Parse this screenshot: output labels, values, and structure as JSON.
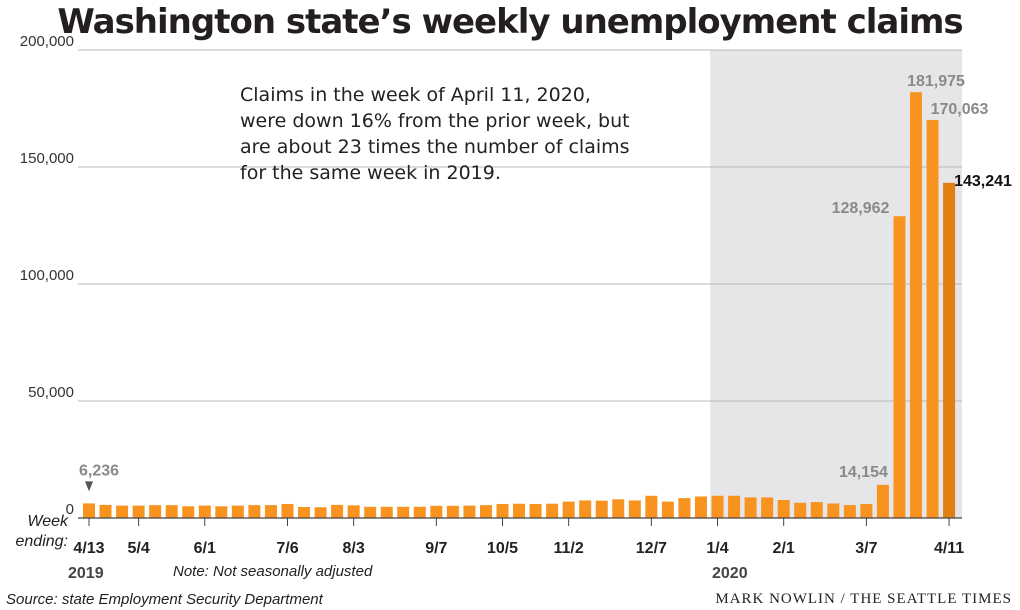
{
  "title": "Washington state’s weekly unemployment claims",
  "note": "Claims in the week of April 11, 2020, were down 16% from the prior week, but are about 23 times the number of claims for the same week in 2019.",
  "week_label": "Week ending:",
  "year_2019": "2019",
  "year_2020": "2020",
  "adjustment_note": "Note: Not seasonally adjusted",
  "source": "Source: state Employment Security Department",
  "credit": "MARK NOWLIN / THE SEATTLE TIMES",
  "colors": {
    "bar": "#f7931e",
    "bar_emphasis": "#e07f14",
    "shade_2020": "#e6e6e8",
    "grid": "#b8b8b8"
  },
  "chart_data": {
    "type": "bar",
    "title": "Washington state’s weekly unemployment claims",
    "ylim": [
      0,
      200000
    ],
    "yticks": [
      0,
      50000,
      100000,
      150000,
      200000
    ],
    "ytick_labels": [
      "0",
      "50,000",
      "100,000",
      "150,000",
      "200,000"
    ],
    "grid": true,
    "x_tick_labels": [
      {
        "index": 0,
        "label": "4/13"
      },
      {
        "index": 3,
        "label": "5/4"
      },
      {
        "index": 7,
        "label": "6/1"
      },
      {
        "index": 12,
        "label": "7/6"
      },
      {
        "index": 16,
        "label": "8/3"
      },
      {
        "index": 21,
        "label": "9/7"
      },
      {
        "index": 25,
        "label": "10/5"
      },
      {
        "index": 29,
        "label": "11/2"
      },
      {
        "index": 34,
        "label": "12/7"
      },
      {
        "index": 38,
        "label": "1/4"
      },
      {
        "index": 42,
        "label": "2/1"
      },
      {
        "index": 47,
        "label": "3/7"
      },
      {
        "index": 52,
        "label": "4/11"
      }
    ],
    "shaded_from_index": 38,
    "values": [
      6236,
      5600,
      5300,
      5300,
      5500,
      5500,
      5000,
      5300,
      5000,
      5300,
      5500,
      5500,
      6000,
      4700,
      4600,
      5600,
      5400,
      4800,
      4800,
      4800,
      4800,
      5200,
      5200,
      5300,
      5500,
      6000,
      6100,
      6000,
      6100,
      7000,
      7500,
      7400,
      8000,
      7500,
      9500,
      7000,
      8500,
      9200,
      9500,
      9500,
      8800,
      8800,
      7700,
      6500,
      6800,
      6200,
      5500,
      6000,
      14154,
      128962,
      181975,
      170063,
      143241
    ],
    "data_labels": [
      {
        "index": 0,
        "text": "6,236"
      },
      {
        "index": 48,
        "text": "14,154"
      },
      {
        "index": 49,
        "text": "128,962"
      },
      {
        "index": 50,
        "text": "181,975"
      },
      {
        "index": 51,
        "text": "170,063"
      },
      {
        "index": 52,
        "text": "143,241",
        "emphasis": true
      }
    ]
  }
}
